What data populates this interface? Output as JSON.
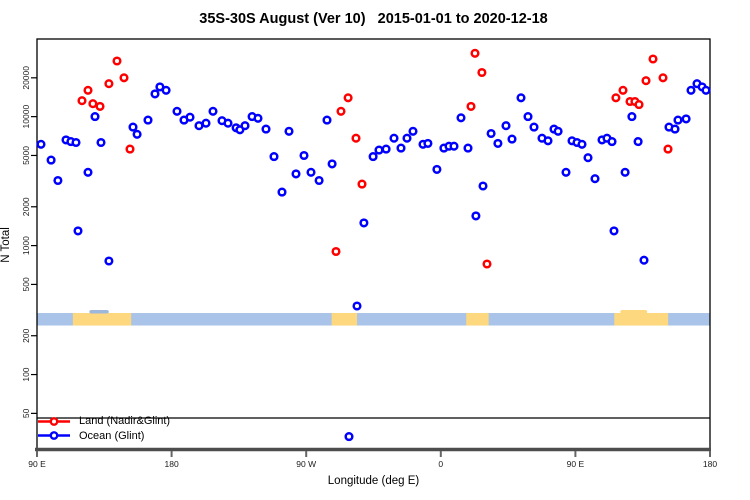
{
  "title": "35S-30S August (Ver 10)   2015-01-01 to 2020-12-18",
  "legend": {
    "items": [
      {
        "label": "Land (Nadir&Glint)",
        "color": "#ff0000"
      },
      {
        "label": "Ocean (Glint)",
        "color": "#0000ff"
      }
    ]
  },
  "chart_data": {
    "type": "scatter",
    "title": "35S-30S August (Ver 10)   2015-01-01 to 2020-12-18",
    "xlabel": "Longitude (deg E)",
    "ylabel": "N Total",
    "grid": false,
    "legend_position": "bottom-left inside plot, above x-axis",
    "x_axis": {
      "note": "longitude unwrapped eastward starting at 90E, crossing dateline and Greenwich",
      "domain": [
        90,
        540
      ],
      "tick_values": [
        90,
        180,
        270,
        360,
        450,
        540
      ],
      "tick_labels": [
        "90 E",
        "180",
        "90 W",
        "0",
        "90 E",
        "180"
      ]
    },
    "y_axis": {
      "scale": "log",
      "domain": [
        26,
        40000
      ],
      "tick_values": [
        50,
        100,
        200,
        500,
        1000,
        2000,
        5000,
        10000,
        20000
      ],
      "tick_labels": [
        "50",
        "100",
        "200",
        "500",
        "1000",
        "2000",
        "5000",
        "10000",
        "20000"
      ]
    },
    "map_strip": {
      "description": "thin world-map band for 35S-30S latitude belt drawn across plot",
      "value_range": [
        240,
        300
      ],
      "ocean_color": "#aac3e8",
      "land_color": "#fdd87e",
      "land_segments_deg": [
        [
          114,
          153
        ],
        [
          287,
          304
        ],
        [
          377,
          392
        ],
        [
          476,
          512
        ]
      ],
      "coast_bumps": [
        {
          "range": [
            125,
            138
          ],
          "color": "#9db8da"
        },
        {
          "range": [
            480,
            498
          ],
          "color": "#fdd87e"
        }
      ]
    },
    "series": [
      {
        "name": "Ocean (Glint)",
        "color": "#0000ff",
        "marker": "open-circle",
        "points": [
          [
            92.7,
            6100
          ],
          [
            99.4,
            4600
          ],
          [
            104,
            3200
          ],
          [
            109.4,
            6600
          ],
          [
            112.7,
            6400
          ],
          [
            116.1,
            6300
          ],
          [
            124.1,
            3700
          ],
          [
            128.8,
            10000
          ],
          [
            132.8,
            6300
          ],
          [
            117.4,
            1300
          ],
          [
            138.1,
            760
          ],
          [
            154.2,
            8300
          ],
          [
            156.9,
            7300
          ],
          [
            164.2,
            9400
          ],
          [
            168.9,
            15000
          ],
          [
            172.2,
            17000
          ],
          [
            176.3,
            16000
          ],
          [
            183.6,
            11000
          ],
          [
            188.3,
            9400
          ],
          [
            192.3,
            9900
          ],
          [
            198.3,
            8500
          ],
          [
            203,
            8900
          ],
          [
            207.7,
            11000
          ],
          [
            213.7,
            9300
          ],
          [
            217.7,
            8900
          ],
          [
            223.1,
            8200
          ],
          [
            225.7,
            7900
          ],
          [
            229.1,
            8500
          ],
          [
            233.8,
            10000
          ],
          [
            237.8,
            9700
          ],
          [
            243.1,
            8000
          ],
          [
            248.5,
            4900
          ],
          [
            253.8,
            2600
          ],
          [
            258.5,
            7700
          ],
          [
            263.2,
            3600
          ],
          [
            268.5,
            5000
          ],
          [
            273.2,
            3700
          ],
          [
            278.6,
            3200
          ],
          [
            283.9,
            9400
          ],
          [
            287.3,
            4300
          ],
          [
            298.6,
            33
          ],
          [
            304,
            340
          ],
          [
            308.6,
            1500
          ],
          [
            314.7,
            4900
          ],
          [
            318.7,
            5500
          ],
          [
            323.4,
            5600
          ],
          [
            328.7,
            6800
          ],
          [
            333.4,
            5700
          ],
          [
            337.4,
            6800
          ],
          [
            341.4,
            7700
          ],
          [
            348.1,
            6100
          ],
          [
            351.4,
            6200
          ],
          [
            357.4,
            3900
          ],
          [
            362.1,
            5700
          ],
          [
            365.5,
            5900
          ],
          [
            368.8,
            5900
          ],
          [
            373.5,
            9800
          ],
          [
            378.2,
            5700
          ],
          [
            383.5,
            1700
          ],
          [
            388.2,
            2900
          ],
          [
            393.6,
            7400
          ],
          [
            398.2,
            6200
          ],
          [
            403.6,
            8500
          ],
          [
            407.6,
            6700
          ],
          [
            413.6,
            14000
          ],
          [
            418.3,
            10000
          ],
          [
            422.3,
            8300
          ],
          [
            427.7,
            6800
          ],
          [
            431.7,
            6500
          ],
          [
            435.7,
            8000
          ],
          [
            438.4,
            7700
          ],
          [
            443.7,
            3700
          ],
          [
            447.7,
            6500
          ],
          [
            451.1,
            6300
          ],
          [
            454.4,
            6100
          ],
          [
            458.4,
            4800
          ],
          [
            463.1,
            3300
          ],
          [
            467.8,
            6600
          ],
          [
            471.1,
            6800
          ],
          [
            474.5,
            6400
          ],
          [
            475.8,
            1300
          ],
          [
            483.2,
            3700
          ],
          [
            487.8,
            10000
          ],
          [
            491.9,
            6400
          ],
          [
            495.9,
            770
          ],
          [
            512.6,
            8300
          ],
          [
            516.6,
            8000
          ],
          [
            518.6,
            9400
          ],
          [
            524,
            9600
          ],
          [
            527.3,
            16000
          ],
          [
            531.3,
            18000
          ],
          [
            534.7,
            17000
          ],
          [
            537.3,
            16000
          ]
        ]
      },
      {
        "name": "Land (Nadir&Glint)",
        "color": "#ff0000",
        "marker": "open-circle",
        "points": [
          [
            143.5,
            27000
          ],
          [
            138.1,
            18000
          ],
          [
            148.2,
            20000
          ],
          [
            124.1,
            16000
          ],
          [
            120.1,
            13300
          ],
          [
            127.4,
            12600
          ],
          [
            132.1,
            12000
          ],
          [
            152.2,
            5600
          ],
          [
            289.9,
            900
          ],
          [
            293.3,
            11000
          ],
          [
            298,
            14000
          ],
          [
            303.3,
            6800
          ],
          [
            307.3,
            3000
          ],
          [
            382.9,
            31000
          ],
          [
            387.5,
            22000
          ],
          [
            380.2,
            12000
          ],
          [
            390.9,
            720
          ],
          [
            477.1,
            14000
          ],
          [
            481.8,
            16000
          ],
          [
            486.5,
            13100
          ],
          [
            489.8,
            13100
          ],
          [
            492.5,
            12400
          ],
          [
            497.2,
            19000
          ],
          [
            501.9,
            28000
          ],
          [
            508.6,
            20000
          ],
          [
            511.9,
            5600
          ]
        ]
      }
    ]
  }
}
